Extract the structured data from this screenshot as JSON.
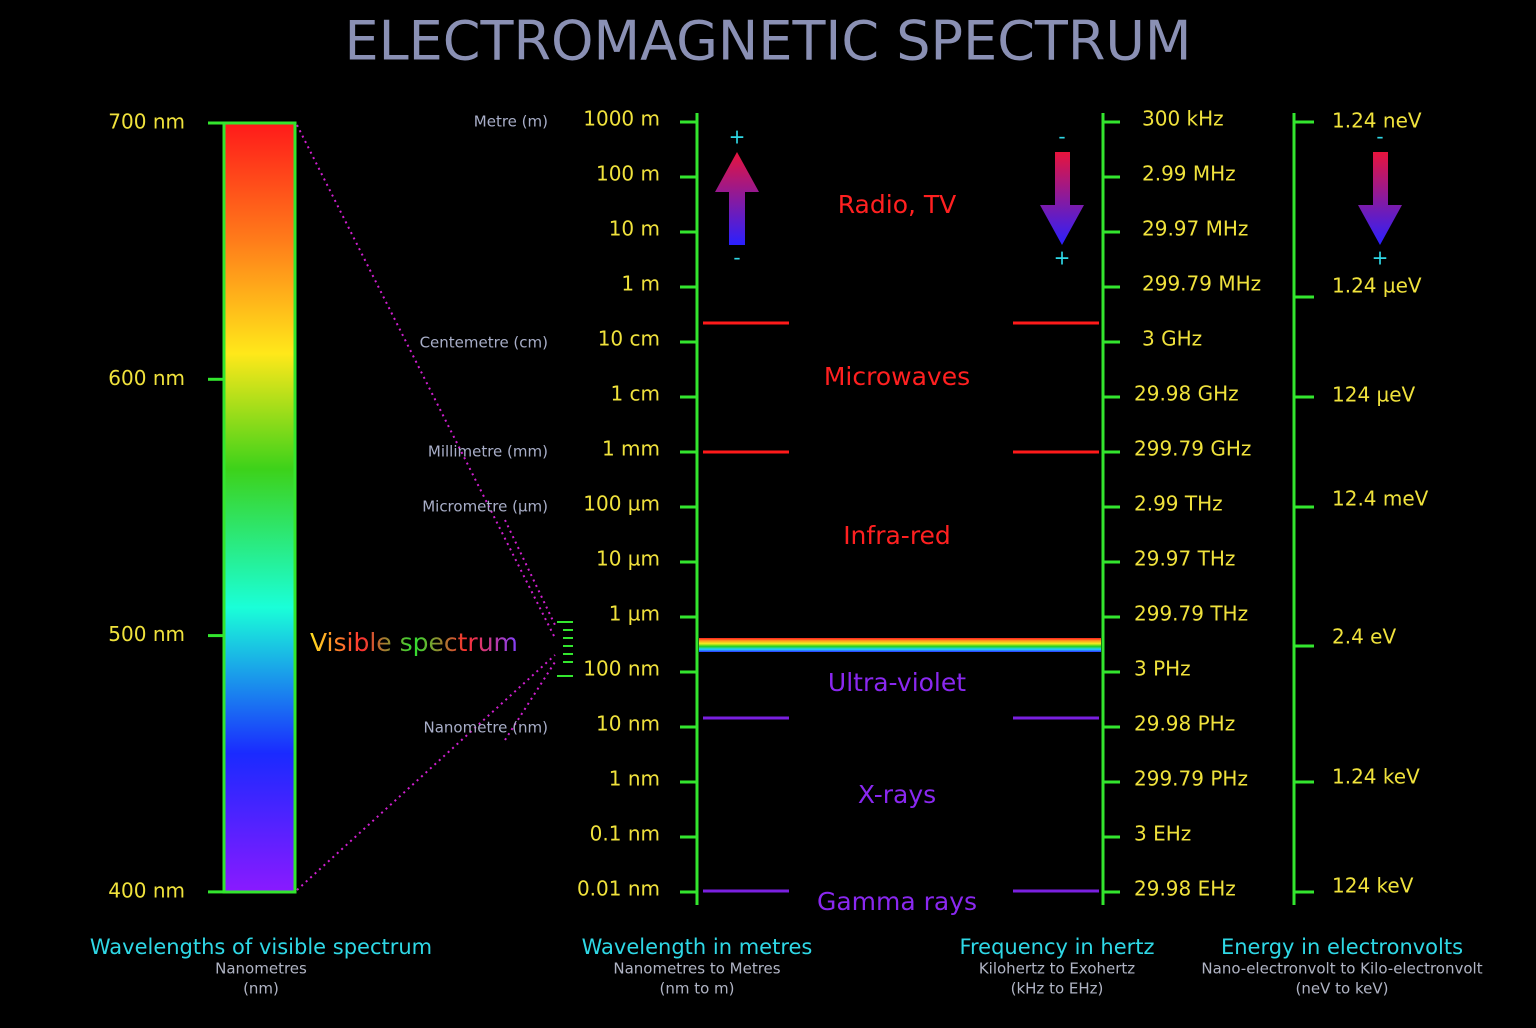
{
  "title": "ELECTROMAGNETIC SPECTRUM",
  "visible": {
    "ticks": [
      "700 nm",
      "600 nm",
      "500 nm",
      "400 nm"
    ],
    "label": "Visible spectrum",
    "caption": {
      "title": "Wavelengths of visible spectrum",
      "subtitle": "Nanometres",
      "unit": "(nm)"
    }
  },
  "wavelength": {
    "units": [
      "Metre (m)",
      "Centemetre (cm)",
      "Millimetre (mm)",
      "Micrometre (µm)",
      "Nanometre (nm)"
    ],
    "ticks": [
      "1000 m",
      "100 m",
      "10 m",
      "1 m",
      "10 cm",
      "1 cm",
      "1 mm",
      "100 µm",
      "10 µm",
      "1 µm",
      "100 nm",
      "10 nm",
      "1 nm",
      "0.1 nm",
      "0.01 nm"
    ],
    "arrow": {
      "top": "+",
      "bottom": "-"
    },
    "caption": {
      "title": "Wavelength in metres",
      "subtitle": "Nanometres to Metres",
      "unit": "(nm to m)"
    }
  },
  "bands": [
    "Radio, TV",
    "Microwaves",
    "Infra-red",
    "Ultra-violet",
    "X-rays",
    "Gamma rays"
  ],
  "frequency": {
    "ticks": [
      "300 kHz",
      "2.99 MHz",
      "29.97 MHz",
      "299.79 MHz",
      "3 GHz",
      "29.98 GHz",
      "299.79 GHz",
      "2.99 THz",
      "29.97 THz",
      "299.79 THz",
      "3 PHz",
      "29.98 PHz",
      "299.79 PHz",
      "3  EHz",
      "29.98  EHz"
    ],
    "arrow": {
      "top": "-",
      "bottom": "+"
    },
    "caption": {
      "title": "Frequency in hertz",
      "subtitle": "Kilohertz to Exohertz",
      "unit": "(kHz to EHz)"
    }
  },
  "energy": {
    "ticks": [
      "1.24 neV",
      "1.24 µeV",
      "124 µeV",
      "12.4 meV",
      "2.4 eV",
      "1.24 keV",
      "124 keV"
    ],
    "arrow": {
      "top": "-",
      "bottom": "+"
    },
    "caption": {
      "title": "Energy in electronvolts",
      "subtitle": "Nano-electronvolt to Kilo-electronvolt",
      "unit": "(neV to keV)"
    }
  }
}
